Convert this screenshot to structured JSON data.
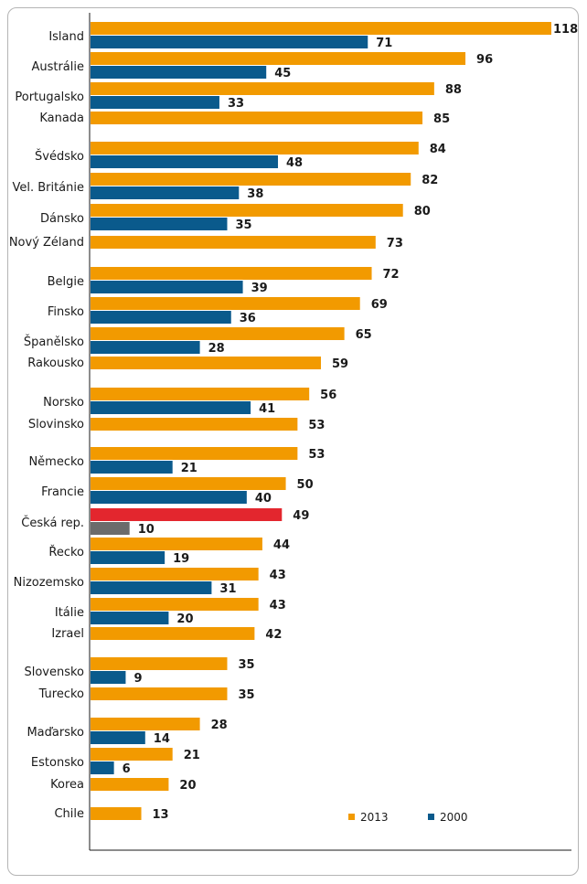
{
  "chart_data": {
    "type": "bar",
    "orientation": "horizontal",
    "title": "",
    "xlabel": "",
    "ylabel": "",
    "xlim": [
      0,
      120
    ],
    "grid": false,
    "legend_position": "bottom-right",
    "series": [
      {
        "name": "2013",
        "color": "#f29a00"
      },
      {
        "name": "2000",
        "color": "#0a5a8c"
      }
    ],
    "highlight": {
      "category": "Česká rep.",
      "color_2013": "#e3262e",
      "color_2000": "#6b6b6b"
    },
    "categories": [
      {
        "name": "Island",
        "v2013": 118,
        "v2000": 71
      },
      {
        "name": "Austrálie",
        "v2013": 96,
        "v2000": 45
      },
      {
        "name": "Portugalsko",
        "v2013": 88,
        "v2000": 33
      },
      {
        "name": "Kanada",
        "v2013": 85,
        "v2000": null
      },
      {
        "name": "Švédsko",
        "v2013": 84,
        "v2000": 48
      },
      {
        "name": "Vel. Británie",
        "v2013": 82,
        "v2000": 38
      },
      {
        "name": "Dánsko",
        "v2013": 80,
        "v2000": 35
      },
      {
        "name": "Nový Zéland",
        "v2013": 73,
        "v2000": null
      },
      {
        "name": "Belgie",
        "v2013": 72,
        "v2000": 39
      },
      {
        "name": "Finsko",
        "v2013": 69,
        "v2000": 36
      },
      {
        "name": "Španělsko",
        "v2013": 65,
        "v2000": 28
      },
      {
        "name": "Rakousko",
        "v2013": 59,
        "v2000": null
      },
      {
        "name": "Norsko",
        "v2013": 56,
        "v2000": 41
      },
      {
        "name": "Slovinsko",
        "v2013": 53,
        "v2000": null
      },
      {
        "name": "Německo",
        "v2013": 53,
        "v2000": 21
      },
      {
        "name": "Francie",
        "v2013": 50,
        "v2000": 40
      },
      {
        "name": "Česká rep.",
        "v2013": 49,
        "v2000": 10
      },
      {
        "name": "Řecko",
        "v2013": 44,
        "v2000": 19
      },
      {
        "name": "Nizozemsko",
        "v2013": 43,
        "v2000": 31
      },
      {
        "name": "Itálie",
        "v2013": 43,
        "v2000": 20
      },
      {
        "name": "Izrael",
        "v2013": 42,
        "v2000": null
      },
      {
        "name": "Slovensko",
        "v2013": 35,
        "v2000": 9
      },
      {
        "name": "Turecko",
        "v2013": 35,
        "v2000": null
      },
      {
        "name": "Maďarsko",
        "v2013": 28,
        "v2000": 14
      },
      {
        "name": "Estonsko",
        "v2013": 21,
        "v2000": 6
      },
      {
        "name": "Korea",
        "v2013": 20,
        "v2000": null
      },
      {
        "name": "Chile",
        "v2013": 13,
        "v2000": null
      }
    ]
  }
}
